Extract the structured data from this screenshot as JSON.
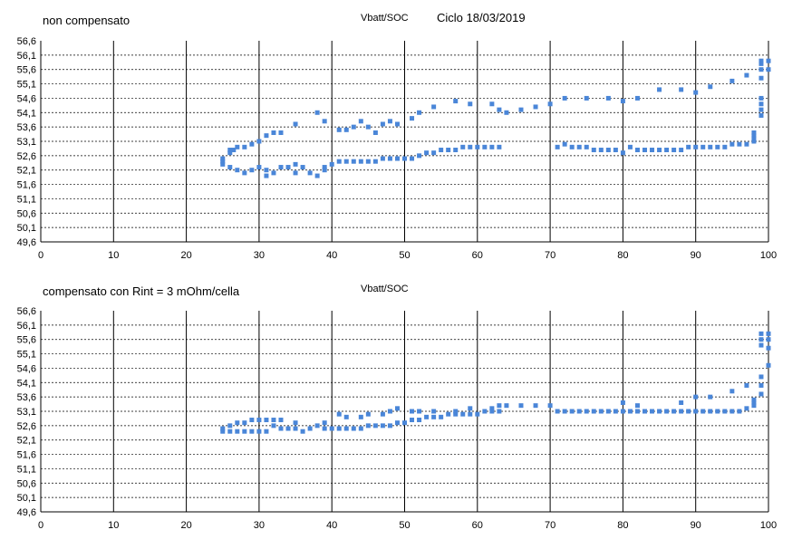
{
  "chart_data": [
    {
      "type": "scatter",
      "title": "non compensato",
      "subtitle": "Vbatt/SOC",
      "date_label": "Ciclo 18/03/2019",
      "xlim": [
        0,
        100
      ],
      "ylim": [
        49.6,
        56.6
      ],
      "x_ticks": [
        "0",
        "10",
        "20",
        "30",
        "40",
        "50",
        "60",
        "70",
        "80",
        "90",
        "100"
      ],
      "y_ticks": [
        "56,6",
        "56,1",
        "55,6",
        "55,1",
        "54,6",
        "54,1",
        "53,6",
        "53,1",
        "52,6",
        "52,1",
        "51,6",
        "51,1",
        "50,6",
        "50,1",
        "49,6"
      ],
      "grid": true,
      "series": [
        {
          "color": "#4a86d8",
          "points": [
            [
              25,
              52.4
            ],
            [
              25,
              52.5
            ],
            [
              25,
              52.3
            ],
            [
              26,
              52.2
            ],
            [
              26,
              52.7
            ],
            [
              26,
              52.8
            ],
            [
              26.5,
              52.8
            ],
            [
              27,
              52.1
            ],
            [
              27,
              52.9
            ],
            [
              28,
              52.0
            ],
            [
              28,
              52.9
            ],
            [
              29,
              52.1
            ],
            [
              29,
              53.0
            ],
            [
              30,
              52.2
            ],
            [
              30,
              53.1
            ],
            [
              31,
              52.1
            ],
            [
              31,
              51.9
            ],
            [
              31,
              53.3
            ],
            [
              32,
              52.0
            ],
            [
              32,
              53.4
            ],
            [
              33,
              52.2
            ],
            [
              33,
              53.4
            ],
            [
              34,
              52.2
            ],
            [
              35,
              52.0
            ],
            [
              35,
              52.3
            ],
            [
              35,
              53.7
            ],
            [
              36,
              52.2
            ],
            [
              37,
              52.0
            ],
            [
              38,
              51.9
            ],
            [
              38,
              54.1
            ],
            [
              39,
              52.1
            ],
            [
              39,
              52.2
            ],
            [
              39,
              53.8
            ],
            [
              40,
              52.3
            ],
            [
              41,
              52.4
            ],
            [
              41,
              53.5
            ],
            [
              42,
              52.4
            ],
            [
              42,
              53.5
            ],
            [
              43,
              52.4
            ],
            [
              43,
              53.6
            ],
            [
              44,
              52.4
            ],
            [
              44,
              53.8
            ],
            [
              45,
              52.4
            ],
            [
              45,
              53.6
            ],
            [
              46,
              52.4
            ],
            [
              46,
              53.4
            ],
            [
              47,
              52.5
            ],
            [
              47,
              53.7
            ],
            [
              48,
              52.5
            ],
            [
              48,
              53.8
            ],
            [
              49,
              52.5
            ],
            [
              49,
              53.7
            ],
            [
              50,
              52.5
            ],
            [
              51,
              52.5
            ],
            [
              51,
              53.9
            ],
            [
              52,
              52.6
            ],
            [
              52,
              54.1
            ],
            [
              53,
              52.7
            ],
            [
              54,
              52.7
            ],
            [
              54,
              54.3
            ],
            [
              55,
              52.8
            ],
            [
              56,
              52.8
            ],
            [
              57,
              52.8
            ],
            [
              57,
              54.5
            ],
            [
              58,
              52.9
            ],
            [
              59,
              52.9
            ],
            [
              59,
              54.4
            ],
            [
              60,
              52.9
            ],
            [
              61,
              52.9
            ],
            [
              62,
              52.9
            ],
            [
              62,
              54.4
            ],
            [
              63,
              52.9
            ],
            [
              63,
              54.2
            ],
            [
              64,
              54.1
            ],
            [
              66,
              54.2
            ],
            [
              68,
              54.3
            ],
            [
              70,
              54.4
            ],
            [
              71,
              52.9
            ],
            [
              72,
              53.0
            ],
            [
              72,
              54.6
            ],
            [
              73,
              52.9
            ],
            [
              74,
              52.9
            ],
            [
              75,
              52.9
            ],
            [
              75,
              54.6
            ],
            [
              76,
              52.8
            ],
            [
              77,
              52.8
            ],
            [
              78,
              52.8
            ],
            [
              78,
              54.6
            ],
            [
              79,
              52.8
            ],
            [
              80,
              52.7
            ],
            [
              80,
              54.5
            ],
            [
              81,
              52.9
            ],
            [
              82,
              52.8
            ],
            [
              82,
              54.6
            ],
            [
              83,
              52.8
            ],
            [
              84,
              52.8
            ],
            [
              85,
              52.8
            ],
            [
              85,
              54.9
            ],
            [
              86,
              52.8
            ],
            [
              87,
              52.8
            ],
            [
              88,
              52.8
            ],
            [
              88,
              54.9
            ],
            [
              89,
              52.9
            ],
            [
              90,
              52.9
            ],
            [
              90,
              54.8
            ],
            [
              91,
              52.9
            ],
            [
              92,
              52.9
            ],
            [
              92,
              55.0
            ],
            [
              93,
              52.9
            ],
            [
              94,
              52.9
            ],
            [
              95,
              53.0
            ],
            [
              95,
              55.2
            ],
            [
              96,
              53.0
            ],
            [
              97,
              53.0
            ],
            [
              97,
              55.4
            ],
            [
              98,
              53.1
            ],
            [
              98,
              53.2
            ],
            [
              98,
              53.3
            ],
            [
              98,
              53.4
            ],
            [
              99,
              54.0
            ],
            [
              99,
              54.2
            ],
            [
              99,
              54.4
            ],
            [
              99,
              54.6
            ],
            [
              99,
              55.3
            ],
            [
              99,
              55.6
            ],
            [
              99,
              55.8
            ],
            [
              99,
              55.9
            ],
            [
              100,
              55.6
            ],
            [
              100,
              55.9
            ]
          ]
        }
      ]
    },
    {
      "type": "scatter",
      "title": "compensato con Rint = 3 mOhm/cella",
      "subtitle": "Vbatt/SOC",
      "xlim": [
        0,
        100
      ],
      "ylim": [
        49.6,
        56.6
      ],
      "x_ticks": [
        "0",
        "10",
        "20",
        "30",
        "40",
        "50",
        "60",
        "70",
        "80",
        "90",
        "100"
      ],
      "y_ticks": [
        "56,6",
        "56,1",
        "55,6",
        "55,1",
        "54,6",
        "54,1",
        "53,6",
        "53,1",
        "52,6",
        "52,1",
        "51,6",
        "51,1",
        "50,6",
        "50,1",
        "49,6"
      ],
      "grid": true,
      "series": [
        {
          "color": "#4a86d8",
          "points": [
            [
              25,
              52.4
            ],
            [
              25,
              52.5
            ],
            [
              26,
              52.4
            ],
            [
              26,
              52.6
            ],
            [
              27,
              52.4
            ],
            [
              27,
              52.7
            ],
            [
              28,
              52.4
            ],
            [
              28,
              52.7
            ],
            [
              29,
              52.4
            ],
            [
              29,
              52.8
            ],
            [
              30,
              52.4
            ],
            [
              30,
              52.8
            ],
            [
              31,
              52.4
            ],
            [
              31,
              52.8
            ],
            [
              32,
              52.6
            ],
            [
              32,
              52.8
            ],
            [
              33,
              52.5
            ],
            [
              33,
              52.8
            ],
            [
              34,
              52.5
            ],
            [
              35,
              52.5
            ],
            [
              35,
              52.7
            ],
            [
              36,
              52.4
            ],
            [
              37,
              52.5
            ],
            [
              38,
              52.6
            ],
            [
              39,
              52.5
            ],
            [
              39,
              52.7
            ],
            [
              40,
              52.5
            ],
            [
              41,
              52.5
            ],
            [
              41,
              53.0
            ],
            [
              42,
              52.5
            ],
            [
              42,
              52.9
            ],
            [
              43,
              52.5
            ],
            [
              44,
              52.5
            ],
            [
              44,
              52.9
            ],
            [
              45,
              52.6
            ],
            [
              45,
              53.0
            ],
            [
              46,
              52.6
            ],
            [
              47,
              52.6
            ],
            [
              47,
              53.0
            ],
            [
              48,
              52.6
            ],
            [
              48,
              53.1
            ],
            [
              49,
              52.7
            ],
            [
              49,
              53.2
            ],
            [
              50,
              52.7
            ],
            [
              51,
              52.8
            ],
            [
              51,
              53.1
            ],
            [
              52,
              52.8
            ],
            [
              52,
              53.1
            ],
            [
              53,
              52.9
            ],
            [
              54,
              52.9
            ],
            [
              54,
              53.1
            ],
            [
              55,
              52.9
            ],
            [
              56,
              53.0
            ],
            [
              57,
              53.0
            ],
            [
              57,
              53.1
            ],
            [
              58,
              53.0
            ],
            [
              59,
              53.0
            ],
            [
              59,
              53.2
            ],
            [
              60,
              53.0
            ],
            [
              61,
              53.1
            ],
            [
              62,
              53.1
            ],
            [
              62,
              53.2
            ],
            [
              63,
              53.1
            ],
            [
              63,
              53.3
            ],
            [
              64,
              53.3
            ],
            [
              66,
              53.3
            ],
            [
              68,
              53.3
            ],
            [
              70,
              53.3
            ],
            [
              71,
              53.1
            ],
            [
              72,
              53.1
            ],
            [
              73,
              53.1
            ],
            [
              74,
              53.1
            ],
            [
              75,
              53.1
            ],
            [
              76,
              53.1
            ],
            [
              77,
              53.1
            ],
            [
              78,
              53.1
            ],
            [
              79,
              53.1
            ],
            [
              80,
              53.1
            ],
            [
              80,
              53.4
            ],
            [
              81,
              53.1
            ],
            [
              82,
              53.1
            ],
            [
              82,
              53.3
            ],
            [
              83,
              53.1
            ],
            [
              84,
              53.1
            ],
            [
              85,
              53.1
            ],
            [
              86,
              53.1
            ],
            [
              87,
              53.1
            ],
            [
              88,
              53.1
            ],
            [
              88,
              53.4
            ],
            [
              89,
              53.1
            ],
            [
              90,
              53.1
            ],
            [
              90,
              53.6
            ],
            [
              91,
              53.1
            ],
            [
              92,
              53.1
            ],
            [
              92,
              53.6
            ],
            [
              93,
              53.1
            ],
            [
              94,
              53.1
            ],
            [
              95,
              53.1
            ],
            [
              95,
              53.8
            ],
            [
              96,
              53.1
            ],
            [
              97,
              53.2
            ],
            [
              97,
              54.0
            ],
            [
              98,
              53.3
            ],
            [
              98,
              53.4
            ],
            [
              98,
              53.5
            ],
            [
              99,
              53.7
            ],
            [
              99,
              54.0
            ],
            [
              99,
              54.3
            ],
            [
              99,
              55.4
            ],
            [
              99,
              55.6
            ],
            [
              99,
              55.8
            ],
            [
              100,
              54.7
            ],
            [
              100,
              55.3
            ],
            [
              100,
              55.6
            ],
            [
              100,
              55.8
            ]
          ]
        }
      ]
    }
  ]
}
